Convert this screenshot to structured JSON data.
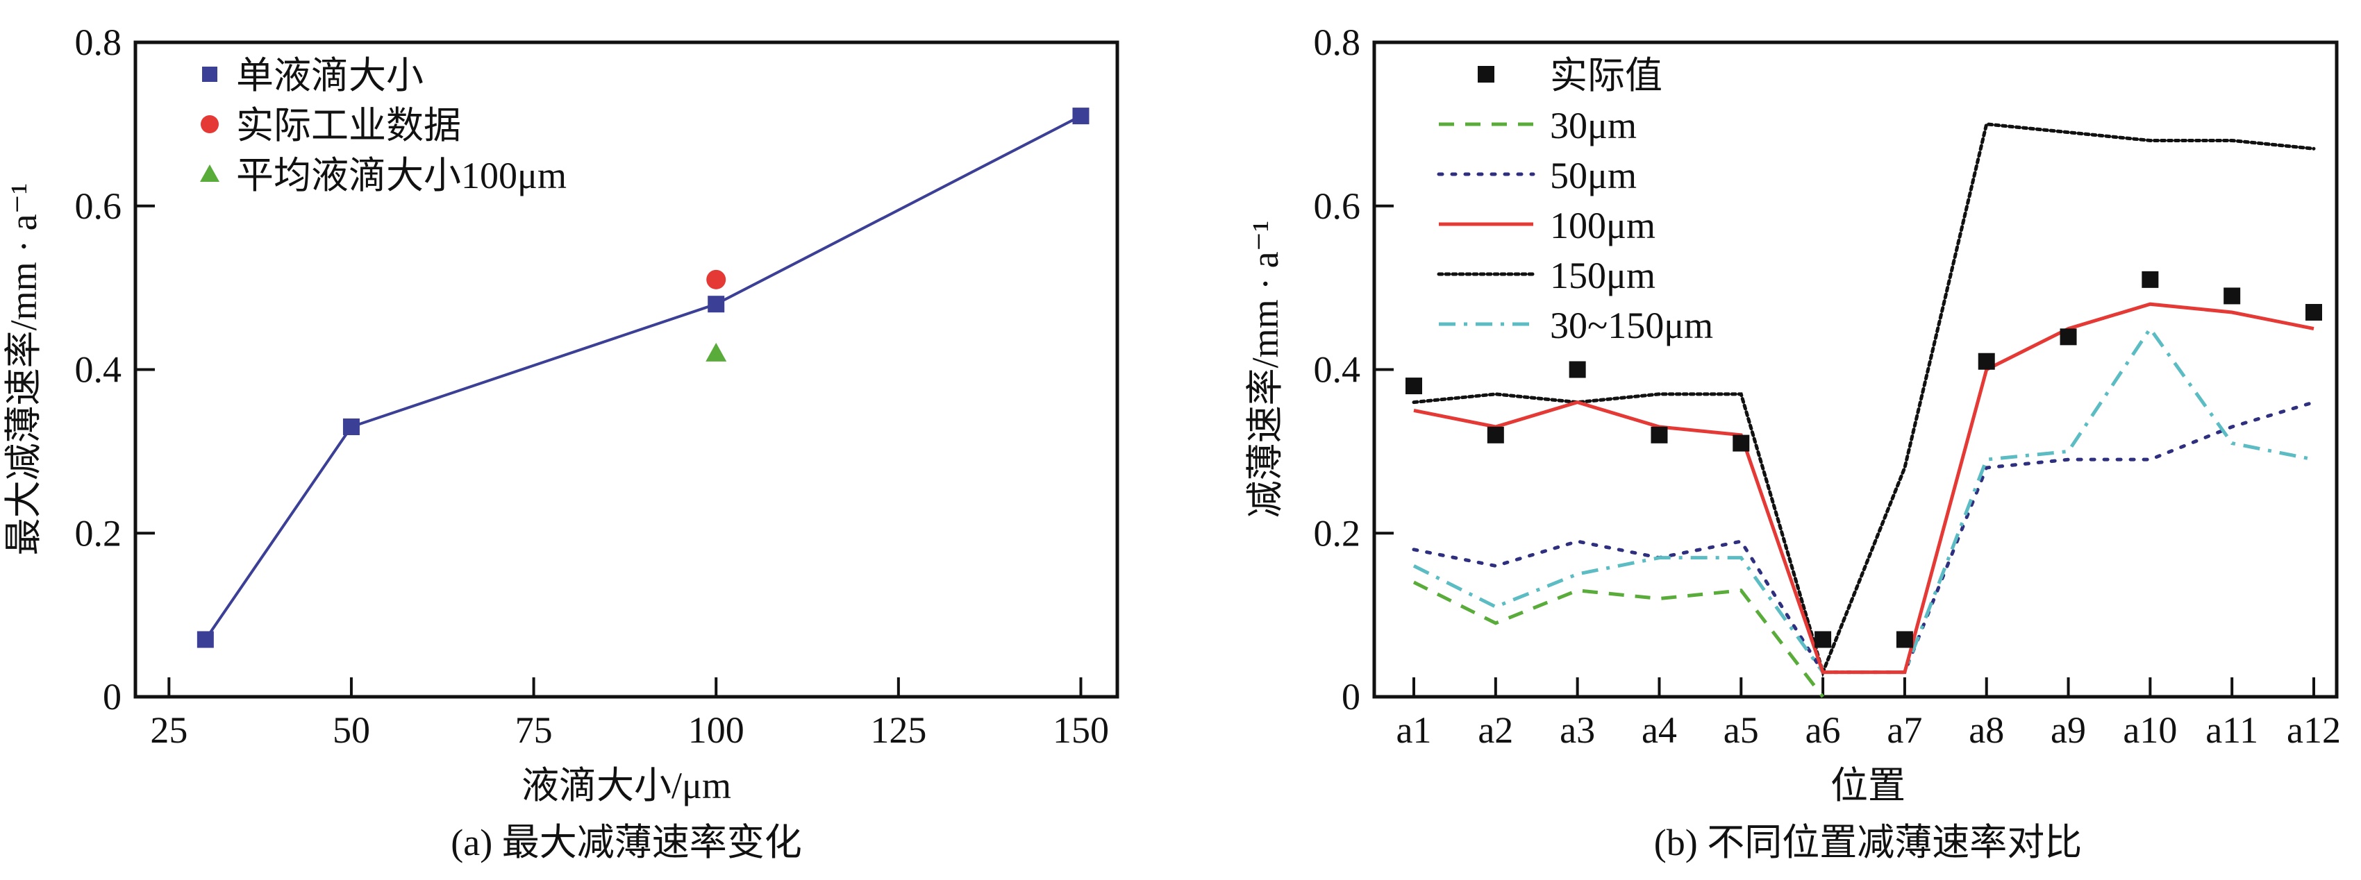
{
  "chart_data": [
    {
      "type": "line",
      "caption": "(a) 最大减薄速率变化",
      "title": "",
      "xlabel": "液滴大小/μm",
      "ylabel": "最大减薄速率/mm · a⁻¹",
      "xlim": [
        20.4,
        155
      ],
      "ylim": [
        0,
        0.8
      ],
      "xticks": [
        25,
        50,
        75,
        100,
        125,
        150
      ],
      "xtick_labels": [
        "25",
        "50",
        "75",
        "100",
        "125",
        "150"
      ],
      "yticks": [
        0,
        0.2,
        0.4,
        0.6,
        0.8
      ],
      "ytick_labels": [
        "0",
        "0.2",
        "0.4",
        "0.6",
        "0.8"
      ],
      "grid": false,
      "legend_position": "top-left",
      "series": [
        {
          "name": "单液滴大小",
          "marker": "square",
          "line": "solid",
          "color": "#3b3f95",
          "x": [
            30,
            50,
            100,
            150
          ],
          "y": [
            0.07,
            0.33,
            0.48,
            0.71
          ]
        },
        {
          "name": "实际工业数据",
          "marker": "circle",
          "line": "none",
          "color": "#e53935",
          "x": [
            100
          ],
          "y": [
            0.51
          ]
        },
        {
          "name": "平均液滴大小100μm",
          "marker": "triangle",
          "line": "none",
          "color": "#5aac3a",
          "x": [
            100
          ],
          "y": [
            0.42
          ]
        }
      ]
    },
    {
      "type": "line",
      "caption": "(b) 不同位置减薄速率对比",
      "title": "",
      "xlabel": "位置",
      "ylabel": "减薄速率/mm · a⁻¹",
      "categories": [
        "a1",
        "a2",
        "a3",
        "a4",
        "a5",
        "a6",
        "a7",
        "a8",
        "a9",
        "a10",
        "a11",
        "a12"
      ],
      "ylim": [
        0,
        0.8
      ],
      "yticks": [
        0,
        0.2,
        0.4,
        0.6,
        0.8
      ],
      "ytick_labels": [
        "0",
        "0.2",
        "0.4",
        "0.6",
        "0.8"
      ],
      "grid": false,
      "legend_position": "top-left",
      "series": [
        {
          "name": "实际值",
          "marker": "square",
          "line": "none",
          "color": "#111111",
          "values": [
            0.38,
            0.32,
            0.4,
            0.32,
            0.31,
            0.07,
            0.07,
            0.41,
            0.44,
            0.51,
            0.49,
            0.47
          ]
        },
        {
          "name": "30μm",
          "marker": "none",
          "line": "dashed",
          "color": "#5aac3a",
          "values": [
            0.14,
            0.09,
            0.13,
            0.12,
            0.13,
            0.0,
            null,
            null,
            null,
            null,
            null,
            null
          ]
        },
        {
          "name": "50μm",
          "marker": "none",
          "line": "dotted",
          "color": "#2e2f7f",
          "values": [
            0.18,
            0.16,
            0.19,
            0.17,
            0.19,
            0.03,
            0.03,
            0.28,
            0.29,
            0.29,
            0.33,
            0.36
          ]
        },
        {
          "name": "100μm",
          "marker": "none",
          "line": "solid",
          "color": "#e53935",
          "values": [
            0.35,
            0.33,
            0.36,
            0.33,
            0.32,
            0.03,
            0.03,
            0.4,
            0.45,
            0.48,
            0.47,
            0.45
          ]
        },
        {
          "name": "150μm",
          "marker": "none",
          "line": "densely-dotted",
          "color": "#111111",
          "values": [
            0.36,
            0.37,
            0.36,
            0.37,
            0.37,
            0.03,
            0.28,
            0.7,
            0.69,
            0.68,
            0.68,
            0.67
          ]
        },
        {
          "name": "30~150μm",
          "marker": "none",
          "line": "dash-dot",
          "color": "#5bbcc4",
          "values": [
            0.16,
            0.11,
            0.15,
            0.17,
            0.17,
            0.03,
            0.03,
            0.29,
            0.3,
            0.45,
            0.31,
            0.29
          ]
        }
      ]
    }
  ]
}
